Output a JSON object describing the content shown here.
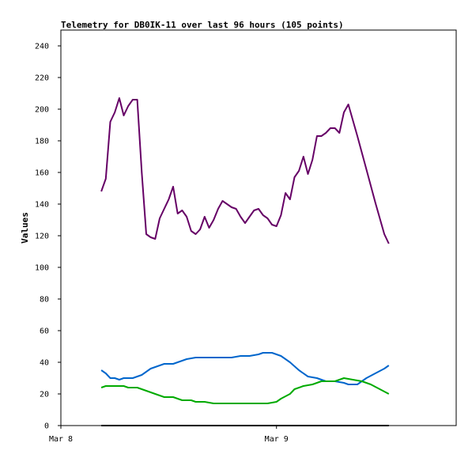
{
  "chart_data": {
    "type": "line",
    "title": "Telemetry for DB0IK-11 over last 96 hours (105 points)",
    "xlabel": "",
    "ylabel": "Values",
    "ylim": [
      0,
      250
    ],
    "yticks": [
      0,
      20,
      40,
      60,
      80,
      100,
      120,
      140,
      160,
      180,
      200,
      220,
      240
    ],
    "xlim": [
      "Mar 8 00:00",
      "Mar 9 20:00"
    ],
    "xticks": [
      "Mar 8",
      "Mar 9"
    ],
    "grid": false,
    "legend": "none",
    "series": [
      {
        "color": "#660066",
        "points": [
          [
            "Mar 8 04:30",
            148
          ],
          [
            "Mar 8 05:00",
            156
          ],
          [
            "Mar 8 05:30",
            192
          ],
          [
            "Mar 8 06:00",
            198
          ],
          [
            "Mar 8 06:30",
            207
          ],
          [
            "Mar 8 07:00",
            196
          ],
          [
            "Mar 8 07:30",
            202
          ],
          [
            "Mar 8 08:00",
            206
          ],
          [
            "Mar 8 08:30",
            206
          ],
          [
            "Mar 8 09:00",
            160
          ],
          [
            "Mar 8 09:30",
            121
          ],
          [
            "Mar 8 10:00",
            119
          ],
          [
            "Mar 8 10:30",
            118
          ],
          [
            "Mar 8 11:00",
            131
          ],
          [
            "Mar 8 12:00",
            143
          ],
          [
            "Mar 8 12:30",
            151
          ],
          [
            "Mar 8 13:00",
            134
          ],
          [
            "Mar 8 13:30",
            136
          ],
          [
            "Mar 8 14:00",
            132
          ],
          [
            "Mar 8 14:30",
            123
          ],
          [
            "Mar 8 15:00",
            121
          ],
          [
            "Mar 8 15:30",
            124
          ],
          [
            "Mar 8 16:00",
            132
          ],
          [
            "Mar 8 16:30",
            125
          ],
          [
            "Mar 8 17:00",
            130
          ],
          [
            "Mar 8 17:30",
            137
          ],
          [
            "Mar 8 18:00",
            142
          ],
          [
            "Mar 8 18:30",
            140
          ],
          [
            "Mar 8 19:00",
            138
          ],
          [
            "Mar 8 19:30",
            137
          ],
          [
            "Mar 8 20:00",
            132
          ],
          [
            "Mar 8 20:30",
            128
          ],
          [
            "Mar 8 21:00",
            132
          ],
          [
            "Mar 8 21:30",
            136
          ],
          [
            "Mar 8 22:00",
            137
          ],
          [
            "Mar 8 22:30",
            133
          ],
          [
            "Mar 8 23:00",
            131
          ],
          [
            "Mar 8 23:30",
            127
          ],
          [
            "Mar 9 00:00",
            126
          ],
          [
            "Mar 9 00:30",
            133
          ],
          [
            "Mar 9 01:00",
            147
          ],
          [
            "Mar 9 01:30",
            143
          ],
          [
            "Mar 9 02:00",
            157
          ],
          [
            "Mar 9 02:30",
            161
          ],
          [
            "Mar 9 03:00",
            170
          ],
          [
            "Mar 9 03:30",
            159
          ],
          [
            "Mar 9 04:00",
            168
          ],
          [
            "Mar 9 04:30",
            183
          ],
          [
            "Mar 9 05:00",
            183
          ],
          [
            "Mar 9 05:30",
            185
          ],
          [
            "Mar 9 06:00",
            188
          ],
          [
            "Mar 9 06:30",
            188
          ],
          [
            "Mar 9 07:00",
            185
          ],
          [
            "Mar 9 07:30",
            198
          ],
          [
            "Mar 9 08:00",
            203
          ],
          [
            "Mar 9 09:00",
            183
          ],
          [
            "Mar 9 10:00",
            162
          ],
          [
            "Mar 9 11:00",
            141
          ],
          [
            "Mar 9 12:00",
            121
          ],
          [
            "Mar 9 12:30",
            115
          ]
        ]
      },
      {
        "color": "#0066cc",
        "points": [
          [
            "Mar 8 04:30",
            35
          ],
          [
            "Mar 8 05:00",
            33
          ],
          [
            "Mar 8 05:30",
            30
          ],
          [
            "Mar 8 06:00",
            30
          ],
          [
            "Mar 8 06:30",
            29
          ],
          [
            "Mar 8 07:00",
            30
          ],
          [
            "Mar 8 08:00",
            30
          ],
          [
            "Mar 8 09:00",
            32
          ],
          [
            "Mar 8 10:00",
            36
          ],
          [
            "Mar 8 11:00",
            38
          ],
          [
            "Mar 8 11:30",
            39
          ],
          [
            "Mar 8 12:30",
            39
          ],
          [
            "Mar 8 14:00",
            42
          ],
          [
            "Mar 8 15:00",
            43
          ],
          [
            "Mar 8 17:00",
            43
          ],
          [
            "Mar 8 19:00",
            43
          ],
          [
            "Mar 8 20:00",
            44
          ],
          [
            "Mar 8 21:00",
            44
          ],
          [
            "Mar 8 22:00",
            45
          ],
          [
            "Mar 8 22:30",
            46
          ],
          [
            "Mar 8 23:30",
            46
          ],
          [
            "Mar 9 00:30",
            44
          ],
          [
            "Mar 9 01:30",
            40
          ],
          [
            "Mar 9 02:30",
            35
          ],
          [
            "Mar 9 03:30",
            31
          ],
          [
            "Mar 9 04:30",
            30
          ],
          [
            "Mar 9 05:30",
            28
          ],
          [
            "Mar 9 06:30",
            28
          ],
          [
            "Mar 9 07:30",
            27
          ],
          [
            "Mar 9 08:00",
            26
          ],
          [
            "Mar 9 09:00",
            26
          ],
          [
            "Mar 9 10:00",
            30
          ],
          [
            "Mar 9 11:00",
            33
          ],
          [
            "Mar 9 12:00",
            36
          ],
          [
            "Mar 9 12:30",
            38
          ]
        ]
      },
      {
        "color": "#00aa00",
        "points": [
          [
            "Mar 8 04:30",
            24
          ],
          [
            "Mar 8 05:00",
            25
          ],
          [
            "Mar 8 06:00",
            25
          ],
          [
            "Mar 8 07:00",
            25
          ],
          [
            "Mar 8 07:30",
            24
          ],
          [
            "Mar 8 08:30",
            24
          ],
          [
            "Mar 8 09:30",
            22
          ],
          [
            "Mar 8 10:30",
            20
          ],
          [
            "Mar 8 11:30",
            18
          ],
          [
            "Mar 8 12:30",
            18
          ],
          [
            "Mar 8 13:30",
            16
          ],
          [
            "Mar 8 14:30",
            16
          ],
          [
            "Mar 8 15:00",
            15
          ],
          [
            "Mar 8 16:00",
            15
          ],
          [
            "Mar 8 17:00",
            14
          ],
          [
            "Mar 8 19:00",
            14
          ],
          [
            "Mar 8 21:00",
            14
          ],
          [
            "Mar 8 23:00",
            14
          ],
          [
            "Mar 9 00:00",
            15
          ],
          [
            "Mar 9 00:30",
            17
          ],
          [
            "Mar 9 01:30",
            20
          ],
          [
            "Mar 9 02:00",
            23
          ],
          [
            "Mar 9 03:00",
            25
          ],
          [
            "Mar 9 04:00",
            26
          ],
          [
            "Mar 9 05:00",
            28
          ],
          [
            "Mar 9 06:00",
            28
          ],
          [
            "Mar 9 06:30",
            28
          ],
          [
            "Mar 9 07:30",
            30
          ],
          [
            "Mar 9 08:30",
            29
          ],
          [
            "Mar 9 09:30",
            28
          ],
          [
            "Mar 9 10:30",
            26
          ],
          [
            "Mar 9 11:30",
            23
          ],
          [
            "Mar 9 12:30",
            20
          ]
        ]
      },
      {
        "color": "#000000",
        "points": [
          [
            "Mar 8 04:30",
            0
          ],
          [
            "Mar 9 12:30",
            0
          ]
        ]
      }
    ]
  }
}
